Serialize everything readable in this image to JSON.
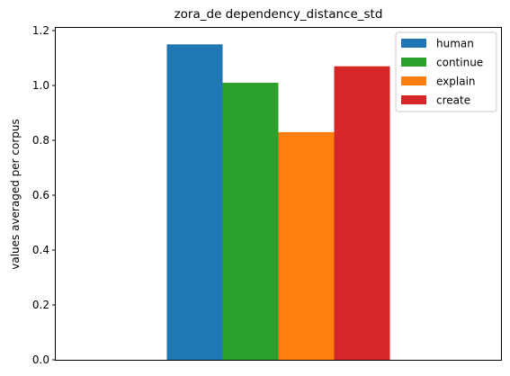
{
  "chart_data": {
    "type": "bar",
    "title": "zora_de dependency_distance_std",
    "xlabel": "",
    "ylabel": "values averaged per corpus",
    "ylim": [
      0,
      1.21
    ],
    "yticks": [
      "0.0",
      "0.2",
      "0.4",
      "0.6",
      "0.8",
      "1.0",
      "1.2"
    ],
    "categories": [
      ""
    ],
    "series": [
      {
        "name": "human",
        "values": [
          1.15
        ],
        "color": "#1f77b4"
      },
      {
        "name": "continue",
        "values": [
          1.01
        ],
        "color": "#2ca02c"
      },
      {
        "name": "explain",
        "values": [
          0.83
        ],
        "color": "#ff7f0e"
      },
      {
        "name": "create",
        "values": [
          1.07
        ],
        "color": "#d62728"
      }
    ],
    "grid": false,
    "legend_position": "top-right"
  }
}
